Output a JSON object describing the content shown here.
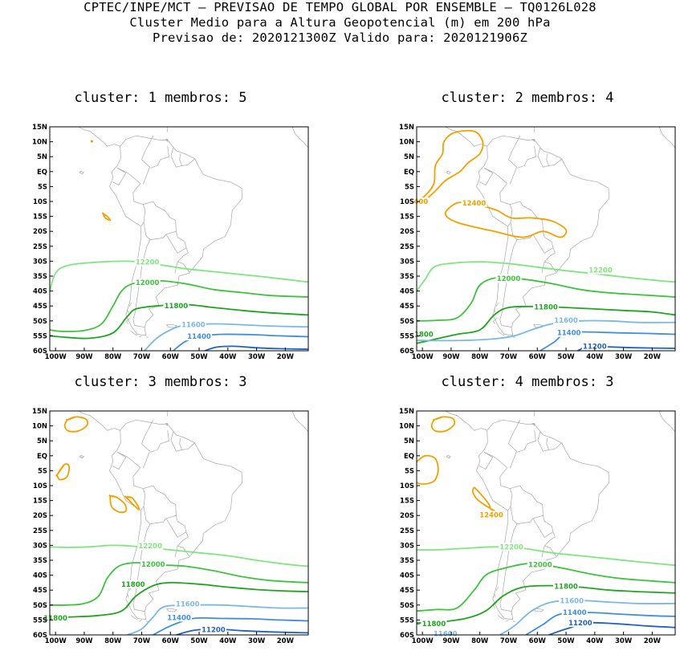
{
  "header": {
    "line1": "CPTEC/INPE/MCT – PREVISAO DE TEMPO GLOBAL POR ENSEMBLE – TQ0126L028",
    "line2": "Cluster Medio para a Altura Geopotencial (m) em 200 hPa",
    "line3": "Previsao de: 2020121300Z    Valido para: 2020121906Z"
  },
  "axes": {
    "lat_labels": [
      "15N",
      "10N",
      "5N",
      "EQ",
      "5S",
      "10S",
      "15S",
      "20S",
      "25S",
      "30S",
      "35S",
      "40S",
      "45S",
      "50S",
      "55S",
      "60S"
    ],
    "lon_labels": [
      "100W",
      "90W",
      "80W",
      "70W",
      "60W",
      "50W",
      "40W",
      "30W",
      "20W"
    ]
  },
  "colors": {
    "c12400": "#f5a000",
    "c12200": "#7fe67f",
    "c12000": "#3dc43d",
    "c11800": "#1ea61e",
    "c11600": "#7ab8ea",
    "c11400": "#3f8fe0",
    "c11200": "#1f62c8",
    "coast": "#a8a8a8"
  },
  "panels": [
    {
      "title": "cluster:  1   membros:  5",
      "contour_labels": [
        "12200",
        "12000",
        "11800",
        "11600",
        "11400"
      ]
    },
    {
      "title": "cluster:  2   membros:  4",
      "contour_labels": [
        "12400",
        "12400",
        "400",
        "12200",
        "12000",
        "11800",
        "11600",
        "11400",
        "11200",
        "1800"
      ]
    },
    {
      "title": "cluster:  3   membros:  3",
      "contour_labels": [
        "12200",
        "12000",
        "11800",
        "11600",
        "11400",
        "11200",
        "11800"
      ]
    },
    {
      "title": "cluster:  4   membros:  3",
      "contour_labels": [
        "12400",
        "12200",
        "12000",
        "11800",
        "11600",
        "11400",
        "11200",
        "11800",
        "11600"
      ]
    }
  ]
}
